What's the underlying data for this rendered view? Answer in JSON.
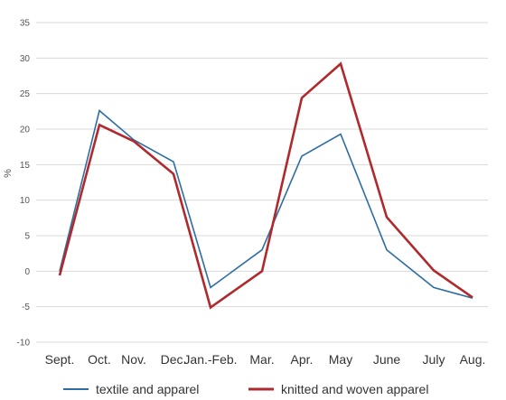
{
  "chart_data": {
    "type": "line",
    "title": "",
    "xlabel": "",
    "ylabel": "%",
    "ylim": [
      -10,
      35
    ],
    "yticks": [
      -10,
      -5,
      0,
      5,
      10,
      15,
      20,
      25,
      30,
      35
    ],
    "grid": true,
    "legend_position": "bottom",
    "categories": [
      "Sept.",
      "Oct.",
      "Nov.",
      "Dec.",
      "Jan.-Feb.",
      "Mar.",
      "Apr.",
      "May",
      "June",
      "July",
      "Aug."
    ],
    "series": [
      {
        "name": "textile and apparel",
        "color": "#2e6da4",
        "values": [
          0,
          22.6,
          18.5,
          15.4,
          -2.3,
          3.0,
          16.2,
          19.3,
          3.0,
          -2.3,
          -3.8
        ]
      },
      {
        "name": "knitted and woven apparel",
        "color": "#b0292d",
        "values": [
          -0.6,
          20.6,
          18.3,
          13.7,
          -5.1,
          0.0,
          24.4,
          29.2,
          7.6,
          0.1,
          -3.7
        ]
      }
    ]
  }
}
